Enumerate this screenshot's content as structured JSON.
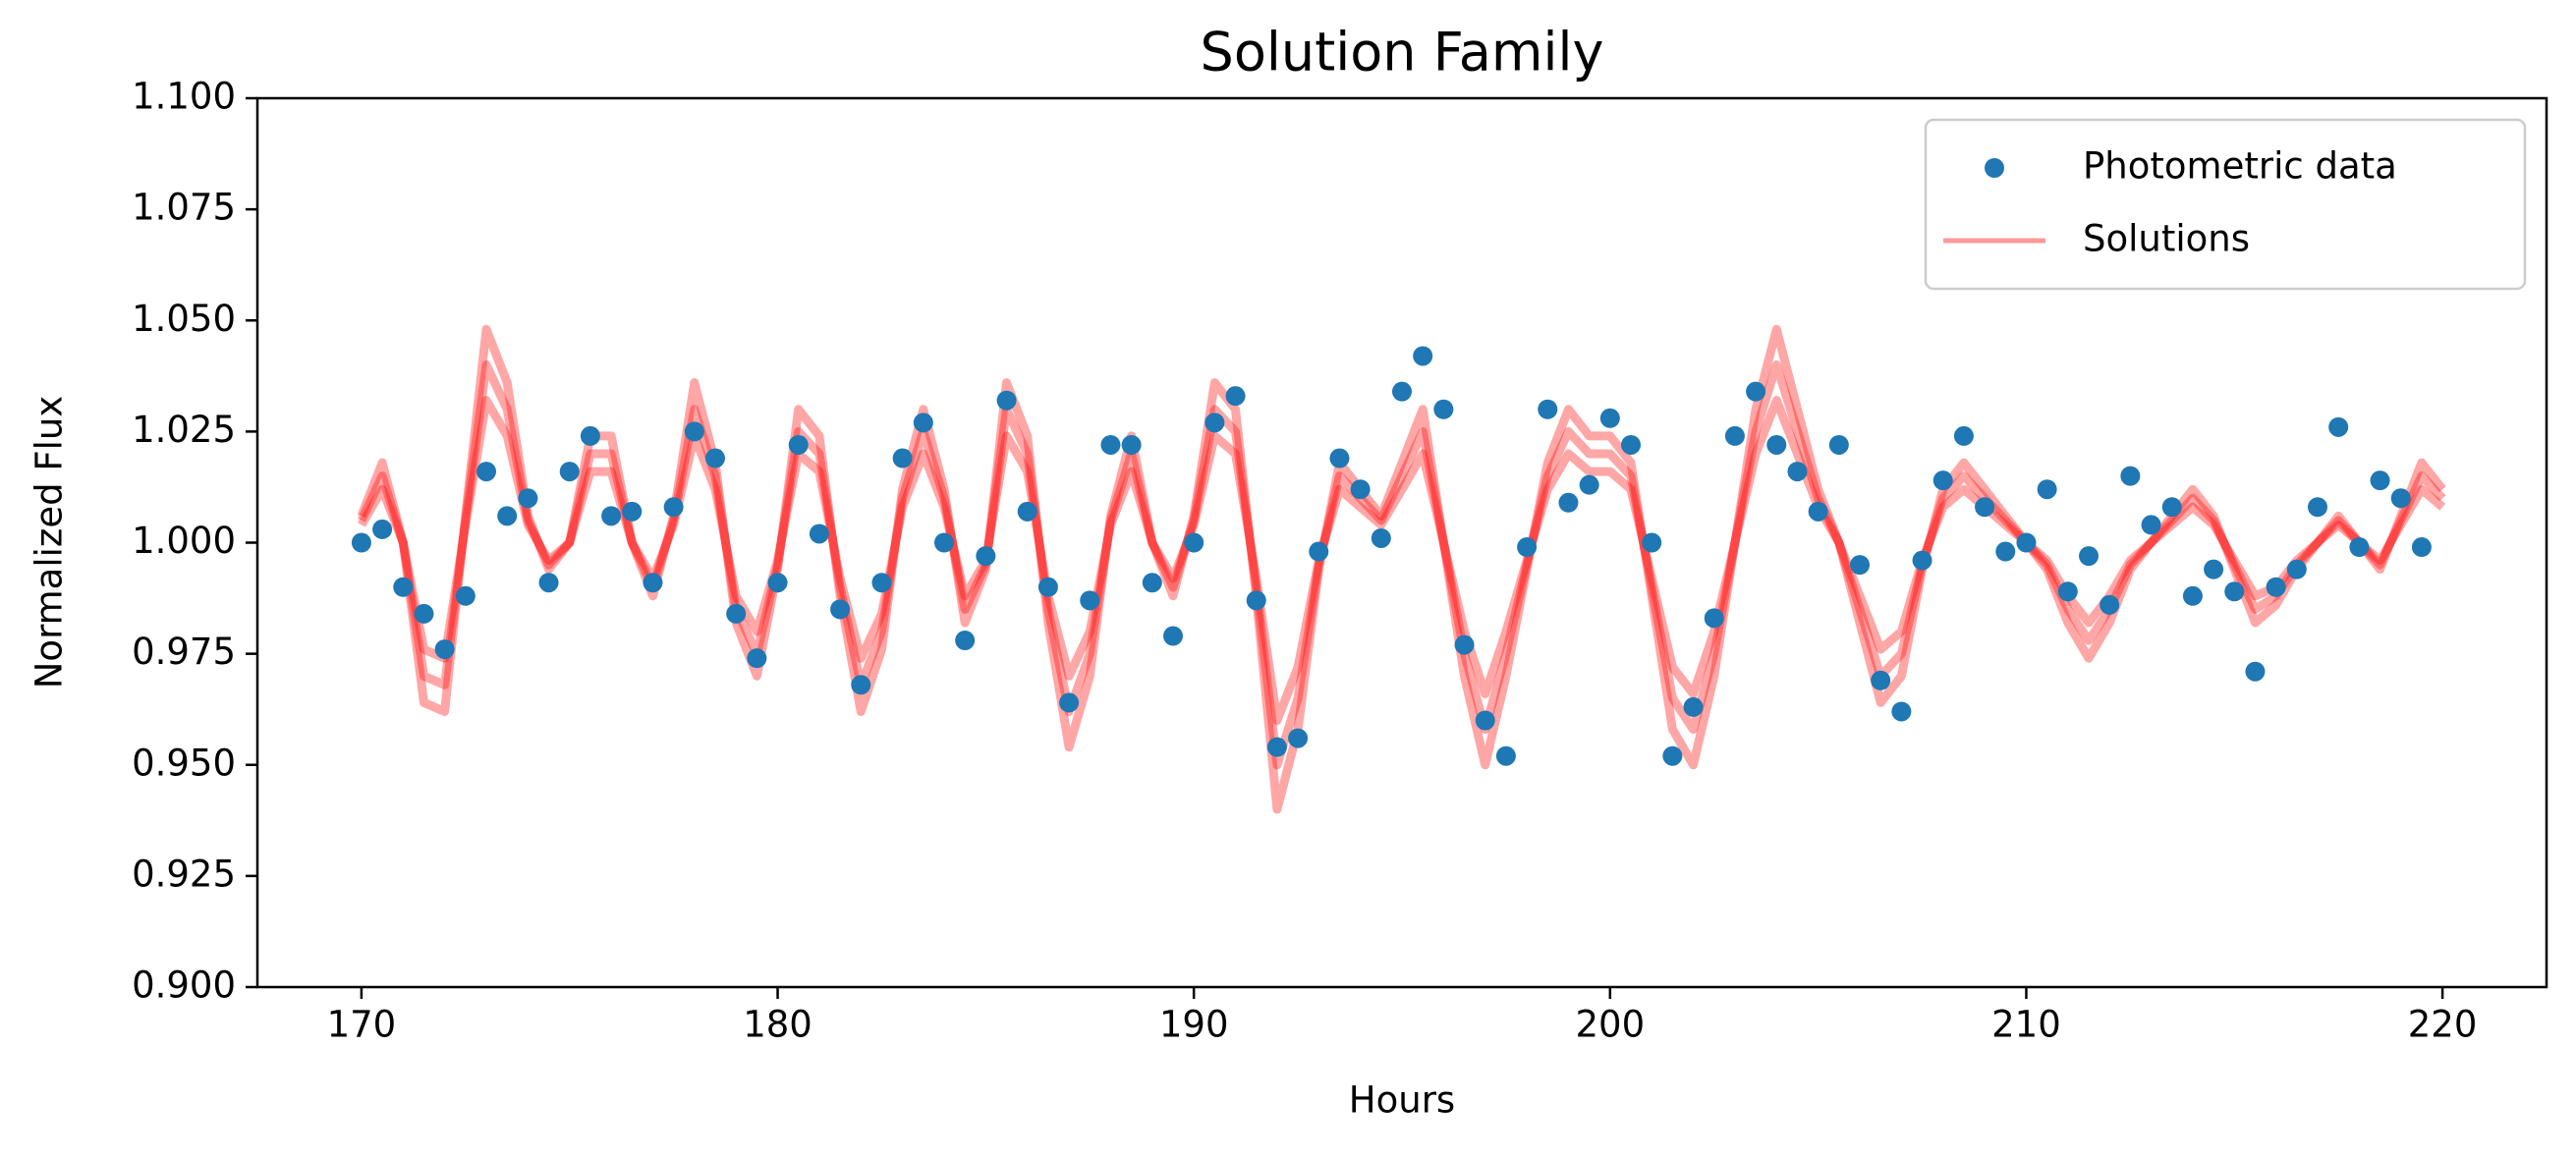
{
  "chart_data": {
    "type": "line",
    "title": "Solution Family",
    "x_label": "Hours",
    "y_label": "Normalized Flux",
    "xlim": [
      167.5,
      222.5
    ],
    "xticks": [
      170,
      180,
      190,
      200,
      210,
      220
    ],
    "ylim": [
      0.9,
      1.1
    ],
    "yticks": [
      {
        "value": 0.9,
        "label": "0.900"
      },
      {
        "value": 0.925,
        "label": "0.925"
      },
      {
        "value": 0.95,
        "label": "0.950"
      },
      {
        "value": 0.975,
        "label": "0.975"
      },
      {
        "value": 1.0,
        "label": "1.000"
      },
      {
        "value": 1.025,
        "label": "1.025"
      },
      {
        "value": 1.05,
        "label": "1.050"
      },
      {
        "value": 1.075,
        "label": "1.075"
      },
      {
        "value": 1.1,
        "label": "1.100"
      }
    ],
    "grid": false,
    "legend": "upper right",
    "series": [
      {
        "name": "Photometric data",
        "type": "scatter",
        "color": "#1f77b4",
        "x": [
          170,
          170.5,
          171,
          171.5,
          172,
          172.5,
          173,
          173.5,
          174,
          174.5,
          175,
          175.5,
          176,
          176.5,
          177,
          177.5,
          178,
          178.5,
          179,
          179.5,
          180,
          180.5,
          181,
          181.5,
          182,
          182.5,
          183,
          183.5,
          184,
          184.5,
          185,
          185.5,
          186,
          186.5,
          187,
          187.5,
          188,
          188.5,
          189,
          189.5,
          190,
          190.5,
          191,
          191.5,
          192,
          192.5,
          193,
          193.5,
          194,
          194.5,
          195,
          195.5,
          196,
          196.5,
          197,
          197.5,
          198,
          198.5,
          199,
          199.5,
          200,
          200.5,
          201,
          201.5,
          202,
          202.5,
          203,
          203.5,
          204,
          204.5,
          205,
          205.5,
          206,
          206.5,
          207,
          207.5,
          208,
          208.5,
          209,
          209.5,
          210,
          210.5,
          211,
          211.5,
          212,
          212.5,
          213,
          213.5,
          214,
          214.5,
          215,
          215.5,
          216,
          216.5,
          217,
          217.5,
          218,
          218.5,
          219,
          219.5
        ],
        "values": [
          1.0,
          1.003,
          0.99,
          0.984,
          0.976,
          0.988,
          1.016,
          1.006,
          1.01,
          0.991,
          1.016,
          1.024,
          1.006,
          1.007,
          0.991,
          1.008,
          1.025,
          1.019,
          0.984,
          0.974,
          0.991,
          1.022,
          1.002,
          0.985,
          0.968,
          0.991,
          1.019,
          1.027,
          1.0,
          0.978,
          0.997,
          1.032,
          1.007,
          0.99,
          0.964,
          0.987,
          1.022,
          1.022,
          0.991,
          0.979,
          1.0,
          1.027,
          1.033,
          0.987,
          0.954,
          0.956,
          0.998,
          1.019,
          1.012,
          1.001,
          1.034,
          1.042,
          1.03,
          0.977,
          0.96,
          0.952,
          0.999,
          1.03,
          1.009,
          1.013,
          1.028,
          1.022,
          1.0,
          0.952,
          0.963,
          0.983,
          1.024,
          1.034,
          1.022,
          1.016,
          1.007,
          1.022,
          0.995,
          0.969,
          0.962,
          0.996,
          1.014,
          1.024,
          1.008,
          0.998,
          1.0,
          1.012,
          0.989,
          0.997,
          0.986,
          1.015,
          1.004,
          1.008,
          0.988,
          0.994,
          0.989,
          0.971,
          0.99,
          0.994,
          1.008,
          1.026,
          0.999,
          1.014,
          1.01,
          0.999
        ]
      },
      {
        "name": "Solutions",
        "type": "line",
        "color": "#ff0000",
        "x": [
          170,
          170.5,
          171,
          171.5,
          172,
          172.5,
          173,
          173.5,
          174,
          174.5,
          175,
          175.5,
          176,
          176.5,
          177,
          177.5,
          178,
          178.5,
          179,
          179.5,
          180,
          180.5,
          181,
          181.5,
          182,
          182.5,
          183,
          183.5,
          184,
          184.5,
          185,
          185.5,
          186,
          186.5,
          187,
          187.5,
          188,
          188.5,
          189,
          189.5,
          190,
          190.5,
          191,
          191.5,
          192,
          192.5,
          193,
          193.5,
          194,
          194.5,
          195,
          195.5,
          196,
          196.5,
          197,
          197.5,
          198,
          198.5,
          199,
          199.5,
          200,
          200.5,
          201,
          201.5,
          202,
          202.5,
          203,
          203.5,
          204,
          204.5,
          205,
          205.5,
          206,
          206.5,
          207,
          207.5,
          208,
          208.5,
          209,
          209.5,
          210,
          210.5,
          211,
          211.5,
          212,
          212.5,
          213,
          213.5,
          214,
          214.5,
          215,
          215.5,
          216,
          216.5,
          217,
          217.5,
          218,
          218.5,
          219,
          219.5,
          220
        ],
        "values": [
          [
            1.005,
            1.015,
            1.0,
            0.97,
            0.968,
            1.005,
            1.04,
            1.03,
            1.005,
            0.995,
            1.0,
            1.02,
            1.02,
            1.0,
            0.99,
            1.005,
            1.03,
            1.015,
            0.985,
            0.975,
            0.995,
            1.025,
            1.02,
            0.99,
            0.968,
            0.98,
            1.01,
            1.025,
            1.01,
            0.985,
            0.995,
            1.03,
            1.02,
            0.985,
            0.962,
            0.975,
            1.005,
            1.02,
            1.0,
            0.99,
            1.005,
            1.03,
            1.025,
            0.99,
            0.95,
            0.965,
            0.995,
            1.015,
            1.01,
            1.005,
            1.015,
            1.025,
            1.0,
            0.975,
            0.958,
            0.975,
            0.995,
            1.015,
            1.025,
            1.02,
            1.02,
            1.015,
            0.99,
            0.965,
            0.958,
            0.975,
            1.0,
            1.025,
            1.04,
            1.025,
            1.01,
            1.0,
            0.985,
            0.97,
            0.975,
            0.995,
            1.01,
            1.015,
            1.01,
            1.005,
            1.0,
            0.995,
            0.985,
            0.978,
            0.985,
            0.995,
            1.0,
            1.005,
            1.01,
            1.005,
            0.995,
            0.985,
            0.988,
            0.995,
            1.0,
            1.005,
            1.0,
            0.995,
            1.005,
            1.015,
            1.01
          ],
          [
            1.006,
            1.018,
            1.0,
            0.964,
            0.962,
            1.006,
            1.048,
            1.036,
            1.006,
            0.994,
            1.0,
            1.024,
            1.024,
            1.0,
            0.988,
            1.006,
            1.036,
            1.018,
            0.982,
            0.97,
            0.994,
            1.03,
            1.024,
            0.988,
            0.962,
            0.976,
            1.012,
            1.03,
            1.012,
            0.982,
            0.994,
            1.036,
            1.024,
            0.982,
            0.954,
            0.97,
            1.006,
            1.024,
            1.0,
            0.988,
            1.006,
            1.036,
            1.03,
            0.988,
            0.94,
            0.958,
            0.994,
            1.018,
            1.012,
            1.006,
            1.018,
            1.03,
            1.0,
            0.97,
            0.95,
            0.97,
            0.994,
            1.018,
            1.03,
            1.024,
            1.024,
            1.018,
            0.988,
            0.958,
            0.95,
            0.97,
            1.0,
            1.03,
            1.048,
            1.03,
            1.012,
            1.0,
            0.982,
            0.964,
            0.97,
            0.994,
            1.012,
            1.018,
            1.012,
            1.006,
            1.0,
            0.994,
            0.982,
            0.974,
            0.982,
            0.994,
            1.0,
            1.006,
            1.012,
            1.006,
            0.994,
            0.982,
            0.986,
            0.994,
            1.0,
            1.006,
            1.0,
            0.994,
            1.006,
            1.018,
            1.012
          ],
          [
            1.004,
            1.012,
            1.0,
            0.976,
            0.974,
            1.004,
            1.032,
            1.024,
            1.004,
            0.996,
            1.0,
            1.016,
            1.016,
            1.0,
            0.992,
            1.004,
            1.024,
            1.012,
            0.988,
            0.98,
            0.996,
            1.02,
            1.016,
            0.992,
            0.974,
            0.984,
            1.008,
            1.02,
            1.008,
            0.988,
            0.996,
            1.024,
            1.016,
            0.988,
            0.97,
            0.98,
            1.004,
            1.016,
            1.0,
            0.992,
            1.004,
            1.024,
            1.02,
            0.992,
            0.96,
            0.972,
            0.996,
            1.012,
            1.008,
            1.004,
            1.012,
            1.02,
            1.0,
            0.98,
            0.966,
            0.98,
            0.996,
            1.012,
            1.02,
            1.016,
            1.016,
            1.012,
            0.992,
            0.972,
            0.966,
            0.98,
            1.0,
            1.02,
            1.032,
            1.02,
            1.008,
            1.0,
            0.988,
            0.976,
            0.98,
            0.996,
            1.008,
            1.012,
            1.008,
            1.004,
            1.0,
            0.996,
            0.988,
            0.982,
            0.988,
            0.996,
            1.0,
            1.004,
            1.008,
            1.004,
            0.996,
            0.988,
            0.99,
            0.996,
            1.0,
            1.004,
            1.0,
            0.996,
            1.004,
            1.012,
            1.008
          ]
        ]
      }
    ]
  }
}
